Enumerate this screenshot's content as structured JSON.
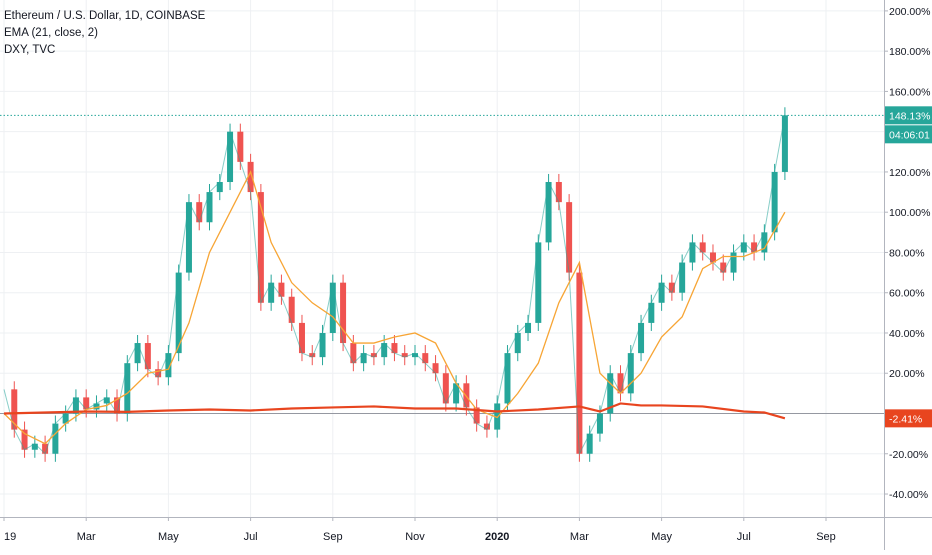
{
  "legend": {
    "symbol": "Ethereum / U.S. Dollar, 1D, COINBASE",
    "ema": "EMA (21, close, 2)",
    "compare": "DXY, TVC"
  },
  "colors": {
    "up": "#26a69a",
    "down": "#ef5350",
    "ema": "#f7a535",
    "dxy": "#e8451f",
    "grid": "#eef0f3",
    "axis_text": "#131722",
    "baseline": "#9598a1"
  },
  "labels": {
    "price_pct": "148.13%",
    "countdown": "04:06:01",
    "dxy_pct": "-2.41%"
  },
  "chart_data": {
    "type": "line",
    "title": "Ethereum / U.S. Dollar, 1D, COINBASE",
    "ylim": [
      -45,
      205
    ],
    "y_ticks": [
      "200.00%",
      "180.00%",
      "160.00%",
      "140.00%",
      "120.00%",
      "100.00%",
      "80.00%",
      "60.00%",
      "40.00%",
      "20.00%",
      "0.00%",
      "-20.00%",
      "-40.00%"
    ],
    "y_tick_values": [
      200,
      180,
      160,
      140,
      120,
      100,
      80,
      60,
      40,
      20,
      0,
      -20,
      -40
    ],
    "x_ticks": [
      "19",
      "Mar",
      "May",
      "Jul",
      "Sep",
      "Nov",
      "2020",
      "Mar",
      "May",
      "Jul",
      "Sep"
    ],
    "x_tick_months": [
      0,
      2,
      4,
      6,
      8,
      10,
      12,
      14,
      16,
      18,
      20
    ],
    "x_range_months": [
      0,
      21.1
    ],
    "last_value": 148.13,
    "grid": true,
    "series": [
      {
        "name": "ETHUSD",
        "x_months": [
          0,
          0.25,
          0.5,
          0.75,
          1.0,
          1.25,
          1.5,
          1.75,
          2.0,
          2.25,
          2.5,
          2.75,
          3.0,
          3.25,
          3.5,
          3.75,
          4.0,
          4.25,
          4.5,
          4.75,
          5.0,
          5.25,
          5.5,
          5.75,
          6.0,
          6.25,
          6.5,
          6.75,
          7.0,
          7.25,
          7.5,
          7.75,
          8.0,
          8.25,
          8.5,
          8.75,
          9.0,
          9.25,
          9.5,
          9.75,
          10.0,
          10.25,
          10.5,
          10.75,
          11.0,
          11.25,
          11.5,
          11.75,
          12.0,
          12.25,
          12.5,
          12.75,
          13.0,
          13.25,
          13.5,
          13.75,
          14.0,
          14.25,
          14.5,
          14.75,
          15.0,
          15.25,
          15.5,
          15.75,
          16.0,
          16.25,
          16.5,
          16.75,
          17.0,
          17.25,
          17.5,
          17.75,
          18.0,
          18.25,
          18.5,
          18.75,
          19.0
        ],
        "values": [
          12,
          -8,
          -18,
          -15,
          -20,
          -5,
          0,
          8,
          2,
          5,
          8,
          0,
          25,
          35,
          22,
          18,
          30,
          70,
          105,
          95,
          110,
          115,
          140,
          125,
          110,
          55,
          65,
          58,
          45,
          30,
          28,
          40,
          65,
          35,
          25,
          30,
          28,
          35,
          30,
          28,
          30,
          25,
          20,
          5,
          15,
          3,
          -5,
          -8,
          5,
          30,
          40,
          45,
          85,
          115,
          105,
          70,
          -20,
          -10,
          0,
          20,
          10,
          30,
          45,
          55,
          65,
          60,
          75,
          85,
          80,
          75,
          70,
          80,
          85,
          80,
          90,
          120,
          148.13
        ]
      },
      {
        "name": "EMA (21, close, 2)",
        "x_months": [
          0,
          0.5,
          1.0,
          1.5,
          2.0,
          2.5,
          3.0,
          3.5,
          4.0,
          4.5,
          5.0,
          5.5,
          6.0,
          6.5,
          7.0,
          7.5,
          8.0,
          8.5,
          9.0,
          9.5,
          10.0,
          10.5,
          11.0,
          11.5,
          12.0,
          12.5,
          13.0,
          13.5,
          14.0,
          14.5,
          15.0,
          15.5,
          16.0,
          16.5,
          17.0,
          17.5,
          18.0,
          18.5,
          19.0
        ],
        "values": [
          0,
          -10,
          -15,
          -5,
          2,
          4,
          10,
          20,
          22,
          45,
          80,
          100,
          120,
          85,
          65,
          55,
          48,
          35,
          35,
          38,
          40,
          35,
          15,
          2,
          -2,
          10,
          25,
          55,
          75,
          20,
          10,
          20,
          38,
          48,
          72,
          78,
          78,
          82,
          100
        ]
      },
      {
        "name": "DXY",
        "x_months": [
          0,
          1,
          2,
          3,
          4,
          5,
          6,
          7,
          8,
          9,
          10,
          11,
          12,
          13,
          14,
          14.5,
          15,
          15.5,
          16,
          17,
          18,
          18.5,
          19
        ],
        "values": [
          0,
          0.5,
          1,
          0.8,
          1.5,
          2,
          1.5,
          2.5,
          3,
          3.5,
          2.5,
          2.5,
          1,
          2,
          3.5,
          1,
          5,
          4,
          4,
          3.5,
          1,
          0.5,
          -2.41
        ]
      }
    ]
  }
}
